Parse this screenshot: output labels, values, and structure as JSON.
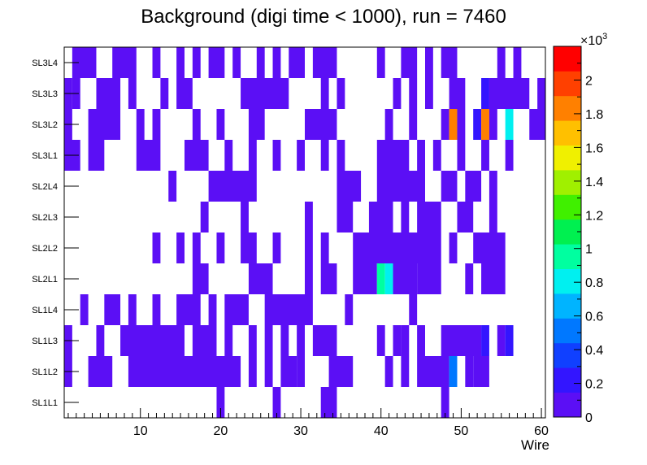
{
  "chart_data": {
    "type": "heatmap",
    "title": "Background (digi time < 1000), run = 7460",
    "xlabel": "Wire",
    "ylabel": "",
    "xlim": [
      0.5,
      60.5
    ],
    "x_ticks": [
      10,
      20,
      30,
      40,
      50,
      60
    ],
    "y_categories": [
      "SL1L1",
      "SL1L2",
      "SL1L3",
      "SL1L4",
      "SL2L1",
      "SL2L2",
      "SL2L3",
      "SL2L4",
      "SL3L1",
      "SL3L2",
      "SL3L3",
      "SL3L4"
    ],
    "colorbar": {
      "range": [
        0,
        2.2
      ],
      "exponent_label": "×10",
      "exponent": "3",
      "ticks": [
        "0",
        "0.2",
        "0.4",
        "0.6",
        "0.8",
        "1",
        "1.2",
        "1.4",
        "1.6",
        "1.8",
        "2"
      ],
      "palette": [
        "#5b0ff5",
        "#3315ff",
        "#1040ff",
        "#0078ff",
        "#00b4ff",
        "#00f0f0",
        "#00ffa0",
        "#00f050",
        "#40f000",
        "#a0f000",
        "#f0f000",
        "#ffc000",
        "#ff8000",
        "#ff4000",
        "#ff0000"
      ]
    },
    "rows": {
      "SL1L1": [
        [
          20,
          20,
          50
        ],
        [
          27,
          27,
          50
        ],
        [
          33,
          34,
          50
        ],
        [
          48,
          48,
          50
        ]
      ],
      "SL1L2": [
        [
          1,
          1,
          50
        ],
        [
          4,
          6,
          50
        ],
        [
          9,
          22,
          50
        ],
        [
          24,
          24,
          50
        ],
        [
          26,
          26,
          50
        ],
        [
          28,
          29,
          50
        ],
        [
          30,
          30,
          50
        ],
        [
          34,
          36,
          50
        ],
        [
          41,
          41,
          50
        ],
        [
          43,
          43,
          50
        ],
        [
          45,
          48,
          50
        ],
        [
          49,
          49,
          450
        ],
        [
          51,
          51,
          50
        ],
        [
          52,
          53,
          50
        ]
      ],
      "SL1L3": [
        [
          1,
          1,
          50
        ],
        [
          5,
          5,
          50
        ],
        [
          8,
          15,
          50
        ],
        [
          17,
          19,
          50
        ],
        [
          21,
          21,
          50
        ],
        [
          24,
          24,
          50
        ],
        [
          26,
          26,
          50
        ],
        [
          28,
          28,
          50
        ],
        [
          30,
          30,
          50
        ],
        [
          32,
          34,
          50
        ],
        [
          40,
          40,
          50
        ],
        [
          42,
          42,
          50
        ],
        [
          43,
          43,
          50
        ],
        [
          45,
          45,
          50
        ],
        [
          48,
          52,
          50
        ],
        [
          53,
          53,
          200
        ],
        [
          55,
          55,
          50
        ],
        [
          56,
          56,
          200
        ]
      ],
      "SL1L4": [
        [
          3,
          3,
          50
        ],
        [
          6,
          7,
          50
        ],
        [
          9,
          9,
          50
        ],
        [
          12,
          12,
          50
        ],
        [
          15,
          17,
          50
        ],
        [
          19,
          19,
          50
        ],
        [
          21,
          23,
          50
        ],
        [
          26,
          31,
          50
        ],
        [
          36,
          36,
          50
        ],
        [
          44,
          44,
          50
        ]
      ],
      "SL2L1": [
        [
          17,
          18,
          50
        ],
        [
          24,
          26,
          50
        ],
        [
          31,
          31,
          50
        ],
        [
          33,
          34,
          50
        ],
        [
          37,
          39,
          50
        ],
        [
          40,
          40,
          1000
        ],
        [
          41,
          41,
          800
        ],
        [
          42,
          44,
          120
        ],
        [
          45,
          47,
          50
        ],
        [
          51,
          51,
          50
        ],
        [
          53,
          55,
          50
        ]
      ],
      "SL2L2": [
        [
          12,
          12,
          50
        ],
        [
          15,
          15,
          50
        ],
        [
          17,
          17,
          50
        ],
        [
          20,
          20,
          50
        ],
        [
          23,
          24,
          50
        ],
        [
          27,
          27,
          50
        ],
        [
          31,
          31,
          50
        ],
        [
          33,
          33,
          50
        ],
        [
          37,
          47,
          50
        ],
        [
          49,
          49,
          50
        ],
        [
          52,
          55,
          50
        ]
      ],
      "SL2L3": [
        [
          18,
          18,
          50
        ],
        [
          23,
          23,
          50
        ],
        [
          31,
          31,
          50
        ],
        [
          35,
          36,
          50
        ],
        [
          39,
          41,
          50
        ],
        [
          43,
          43,
          50
        ],
        [
          45,
          47,
          50
        ],
        [
          50,
          51,
          50
        ],
        [
          54,
          54,
          50
        ]
      ],
      "SL2L4": [
        [
          14,
          14,
          50
        ],
        [
          19,
          24,
          50
        ],
        [
          35,
          37,
          50
        ],
        [
          40,
          45,
          50
        ],
        [
          48,
          49,
          50
        ],
        [
          51,
          52,
          50
        ],
        [
          54,
          54,
          50
        ]
      ],
      "SL3L1": [
        [
          1,
          2,
          50
        ],
        [
          4,
          5,
          50
        ],
        [
          10,
          12,
          50
        ],
        [
          16,
          18,
          50
        ],
        [
          21,
          21,
          50
        ],
        [
          24,
          24,
          50
        ],
        [
          27,
          27,
          50
        ],
        [
          30,
          30,
          50
        ],
        [
          33,
          33,
          50
        ],
        [
          35,
          35,
          50
        ],
        [
          40,
          43,
          50
        ],
        [
          45,
          45,
          50
        ],
        [
          47,
          47,
          50
        ],
        [
          50,
          50,
          50
        ],
        [
          53,
          53,
          50
        ],
        [
          56,
          56,
          50
        ]
      ],
      "SL3L2": [
        [
          1,
          1,
          50
        ],
        [
          4,
          7,
          50
        ],
        [
          10,
          10,
          50
        ],
        [
          12,
          12,
          50
        ],
        [
          17,
          17,
          50
        ],
        [
          20,
          20,
          50
        ],
        [
          24,
          25,
          50
        ],
        [
          31,
          34,
          50
        ],
        [
          41,
          41,
          50
        ],
        [
          44,
          44,
          50
        ],
        [
          48,
          48,
          50
        ],
        [
          49,
          49,
          1900
        ],
        [
          50,
          50,
          50
        ],
        [
          52,
          52,
          200
        ],
        [
          53,
          53,
          1900
        ],
        [
          54,
          54,
          50
        ],
        [
          56,
          56,
          800
        ],
        [
          59,
          60,
          50
        ]
      ],
      "SL3L3": [
        [
          1,
          1,
          50
        ],
        [
          2,
          2,
          50
        ],
        [
          5,
          7,
          50
        ],
        [
          9,
          9,
          50
        ],
        [
          13,
          13,
          50
        ],
        [
          15,
          16,
          50
        ],
        [
          23,
          28,
          50
        ],
        [
          33,
          33,
          50
        ],
        [
          35,
          35,
          50
        ],
        [
          42,
          42,
          50
        ],
        [
          44,
          44,
          50
        ],
        [
          46,
          46,
          50
        ],
        [
          49,
          50,
          50
        ],
        [
          53,
          53,
          200
        ],
        [
          54,
          58,
          50
        ],
        [
          60,
          60,
          50
        ]
      ],
      "SL3L4": [
        [
          2,
          4,
          50
        ],
        [
          7,
          9,
          50
        ],
        [
          12,
          12,
          50
        ],
        [
          15,
          15,
          50
        ],
        [
          17,
          17,
          50
        ],
        [
          19,
          20,
          50
        ],
        [
          22,
          22,
          50
        ],
        [
          25,
          25,
          50
        ],
        [
          27,
          27,
          50
        ],
        [
          29,
          30,
          50
        ],
        [
          32,
          34,
          50
        ],
        [
          40,
          40,
          50
        ],
        [
          43,
          44,
          50
        ],
        [
          46,
          46,
          50
        ],
        [
          48,
          49,
          50
        ],
        [
          55,
          55,
          50
        ],
        [
          57,
          57,
          50
        ]
      ]
    }
  }
}
